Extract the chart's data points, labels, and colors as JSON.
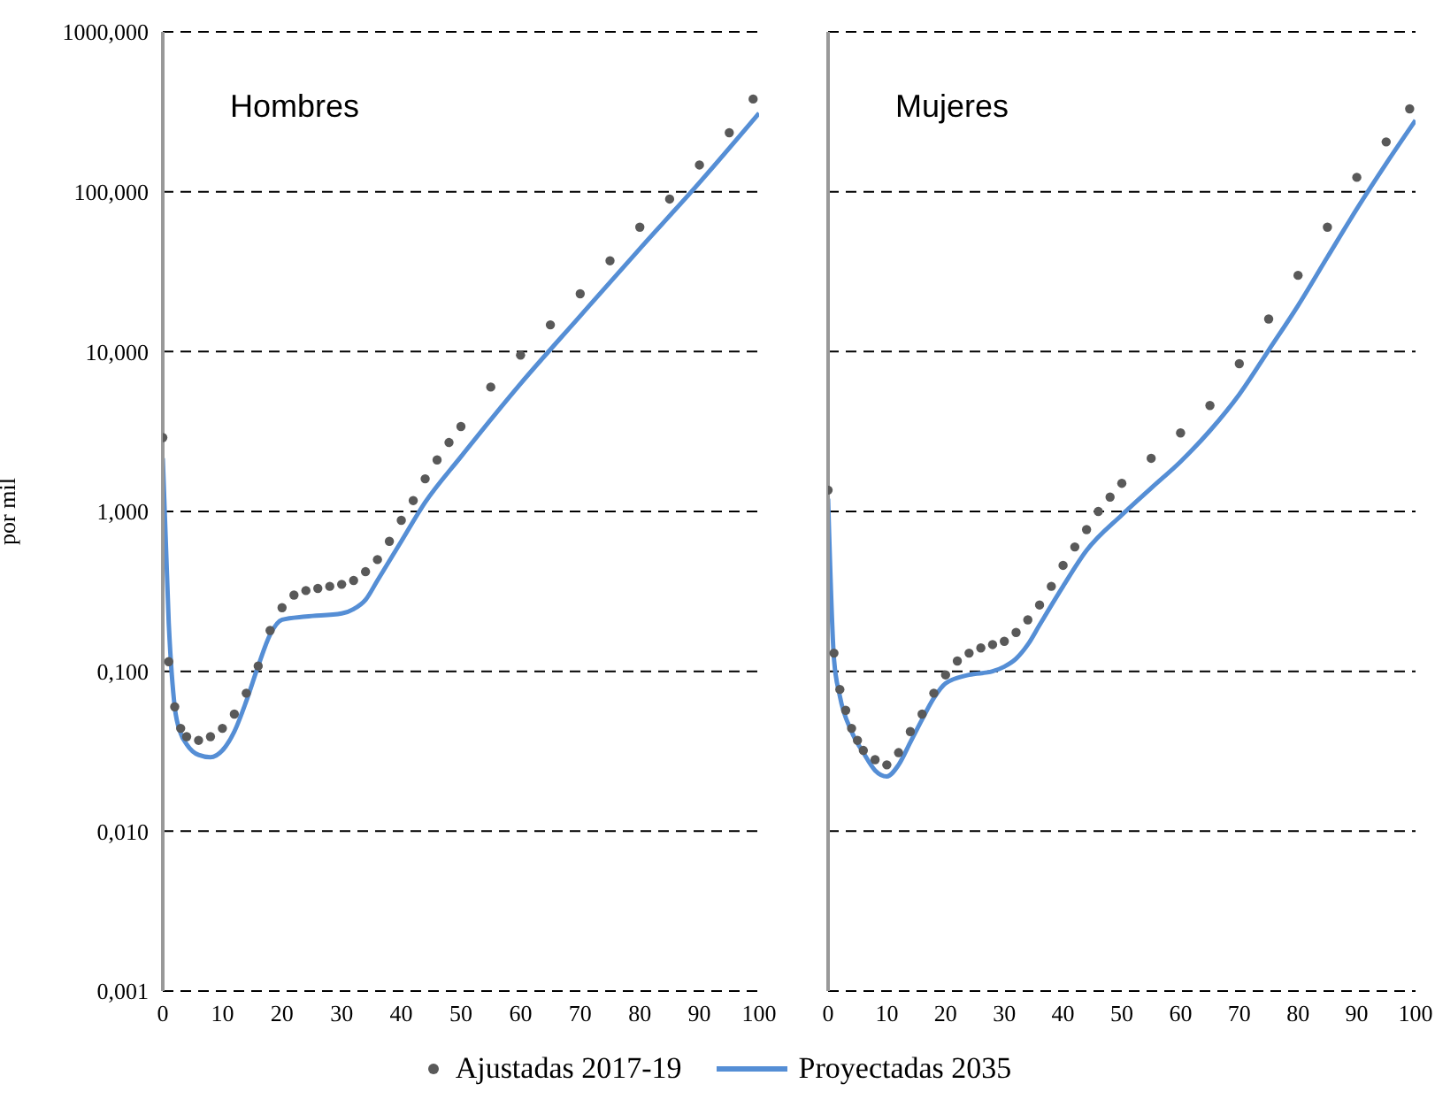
{
  "chart_data": [
    {
      "type": "line",
      "title": "Hombres",
      "ylabel": "por mil",
      "log": "y",
      "grid": "y",
      "legend": "bottom",
      "xlim": [
        0,
        100
      ],
      "xticks": [
        0,
        10,
        20,
        30,
        40,
        50,
        60,
        70,
        80,
        90,
        100
      ],
      "ylim": [
        0.001,
        1000
      ],
      "yticks": [
        {
          "value": 0.001,
          "label": "0,001"
        },
        {
          "value": 0.01,
          "label": "0,010"
        },
        {
          "value": 0.1,
          "label": "0,100"
        },
        {
          "value": 1,
          "label": "1,000"
        },
        {
          "value": 10,
          "label": "10,000"
        },
        {
          "value": 100,
          "label": "100,000"
        },
        {
          "value": 1000,
          "label": "1000,000"
        }
      ],
      "series": [
        {
          "name": "Ajustadas 2017-19",
          "type": "scatter",
          "marker": "circle",
          "color": "#595959",
          "x": [
            0,
            1,
            2,
            3,
            4,
            6,
            8,
            10,
            12,
            14,
            16,
            18,
            20,
            22,
            24,
            26,
            28,
            30,
            32,
            34,
            36,
            38,
            40,
            42,
            44,
            46,
            48,
            50,
            55,
            60,
            65,
            70,
            75,
            80,
            85,
            90,
            95,
            99
          ],
          "values": [
            2.9,
            0.115,
            0.06,
            0.044,
            0.039,
            0.037,
            0.039,
            0.044,
            0.054,
            0.073,
            0.108,
            0.18,
            0.25,
            0.3,
            0.32,
            0.33,
            0.34,
            0.35,
            0.37,
            0.42,
            0.5,
            0.65,
            0.88,
            1.17,
            1.6,
            2.1,
            2.7,
            3.4,
            6,
            9.5,
            14.7,
            23,
            37,
            60,
            90,
            147,
            234,
            380
          ]
        },
        {
          "name": "Proyectadas 2035",
          "marker": "none",
          "line_style": "solid",
          "color": "#558ed5",
          "x": [
            0,
            1,
            2,
            3,
            4,
            6,
            8,
            10,
            12,
            14,
            16,
            18,
            20,
            24,
            30,
            32,
            34,
            36,
            40,
            44,
            50,
            60,
            70,
            80,
            90,
            100
          ],
          "values": [
            2.15,
            0.2,
            0.06,
            0.041,
            0.035,
            0.03,
            0.029,
            0.032,
            0.042,
            0.065,
            0.108,
            0.17,
            0.21,
            0.22,
            0.23,
            0.245,
            0.28,
            0.37,
            0.65,
            1.14,
            2.2,
            6.3,
            16.7,
            44,
            114,
            310
          ]
        }
      ]
    },
    {
      "type": "line",
      "title": "Mujeres",
      "log": "y",
      "grid": "y",
      "tick_labels": "x",
      "xlim": [
        0,
        100
      ],
      "xticks": [
        0,
        10,
        20,
        30,
        40,
        50,
        60,
        70,
        80,
        90,
        100
      ],
      "ylim": [
        0.001,
        1000
      ],
      "yticks": [
        {
          "value": 0.001,
          "label": null
        },
        {
          "value": 0.01,
          "label": null
        },
        {
          "value": 0.1,
          "label": null
        },
        {
          "value": 1,
          "label": null
        },
        {
          "value": 10,
          "label": null
        },
        {
          "value": 100,
          "label": null
        },
        {
          "value": 1000,
          "label": null
        }
      ],
      "series": [
        {
          "type": "scatter",
          "marker": "circle",
          "color": "#595959",
          "x": [
            0,
            1,
            2,
            3,
            4,
            5,
            6,
            8,
            10,
            12,
            14,
            16,
            18,
            20,
            22,
            24,
            26,
            28,
            30,
            32,
            34,
            36,
            38,
            40,
            42,
            44,
            46,
            48,
            50,
            55,
            60,
            65,
            70,
            75,
            80,
            85,
            90,
            95,
            99
          ],
          "values": [
            1.36,
            0.13,
            0.077,
            0.057,
            0.044,
            0.037,
            0.032,
            0.028,
            0.026,
            0.031,
            0.042,
            0.054,
            0.073,
            0.095,
            0.116,
            0.13,
            0.14,
            0.147,
            0.154,
            0.175,
            0.21,
            0.26,
            0.34,
            0.46,
            0.6,
            0.77,
            1,
            1.23,
            1.5,
            2.15,
            3.1,
            4.6,
            8.4,
            16,
            30,
            60,
            123,
            205,
            330
          ]
        },
        {
          "marker": "none",
          "line_style": "solid",
          "color": "#558ed5",
          "x": [
            0,
            1,
            2,
            4,
            6,
            8,
            10,
            12,
            14,
            16,
            18,
            20,
            24,
            28,
            30,
            32,
            34,
            36,
            40,
            44,
            50,
            55,
            60,
            65,
            70,
            75,
            80,
            85,
            90,
            95,
            100
          ],
          "values": [
            1.2,
            0.12,
            0.07,
            0.042,
            0.031,
            0.024,
            0.022,
            0.026,
            0.036,
            0.05,
            0.068,
            0.084,
            0.095,
            0.1,
            0.107,
            0.12,
            0.147,
            0.195,
            0.34,
            0.57,
            0.95,
            1.4,
            2.05,
            3.2,
            5.4,
            10.2,
            19.4,
            39,
            78,
            150,
            280
          ]
        }
      ]
    }
  ]
}
